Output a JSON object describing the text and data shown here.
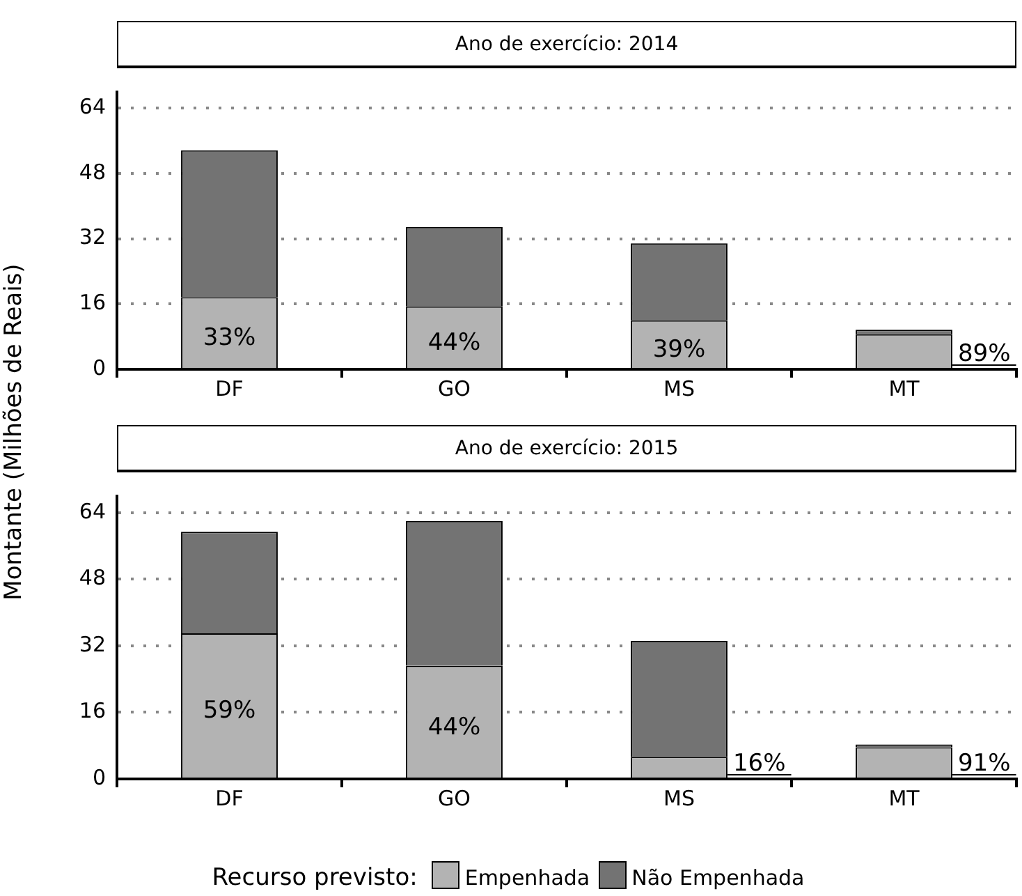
{
  "chart_data": [
    {
      "type": "bar",
      "title": "Ano de exercício: 2014",
      "ylabel": "Montante (Milhões de Reais)",
      "categories": [
        "DF",
        "GO",
        "MS",
        "MT"
      ],
      "stacked": true,
      "ylim": [
        0,
        68
      ],
      "yticks": [
        0,
        16,
        32,
        48,
        64
      ],
      "grid": "y",
      "legend": "bottom",
      "legend_title": "Recurso previsto:",
      "series": [
        {
          "name": "Empenhada",
          "color": "#b3b3b3",
          "values": [
            17.7,
            15.4,
            12.0,
            8.6
          ]
        },
        {
          "name": "Não Empenhada",
          "color": "#737373",
          "values": [
            36.0,
            19.5,
            18.9,
            1.1
          ]
        }
      ],
      "annotations": [
        {
          "text": "33%",
          "x": "DF",
          "y": 17.7
        },
        {
          "text": "44%",
          "x": "GO",
          "y": 15.4
        },
        {
          "text": "39%",
          "x": "MS",
          "y": 12.0
        },
        {
          "text": "89%",
          "x": "MT",
          "y": 8.6
        }
      ]
    },
    {
      "type": "bar",
      "title": "Ano de exercício: 2015",
      "categories": [
        "DF",
        "GO",
        "MS",
        "MT"
      ],
      "stacked": true,
      "ylim": [
        0,
        68
      ],
      "yticks": [
        0,
        16,
        32,
        48,
        64
      ],
      "grid": "y",
      "legend": "bottom",
      "series": [
        {
          "name": "Empenhada",
          "color": "#b3b3b3",
          "values": [
            35.0,
            27.2,
            5.3,
            7.6
          ]
        },
        {
          "name": "Não Empenhada",
          "color": "#737373",
          "values": [
            24.4,
            34.8,
            27.9,
            0.7
          ]
        }
      ],
      "annotations": [
        {
          "text": "59%",
          "x": "DF",
          "y": 35.0
        },
        {
          "text": "44%",
          "x": "GO",
          "y": 27.2
        },
        {
          "text": "16%",
          "x": "MS",
          "y": 5.3
        },
        {
          "text": "91%",
          "x": "MT",
          "y": 7.6
        }
      ]
    }
  ]
}
